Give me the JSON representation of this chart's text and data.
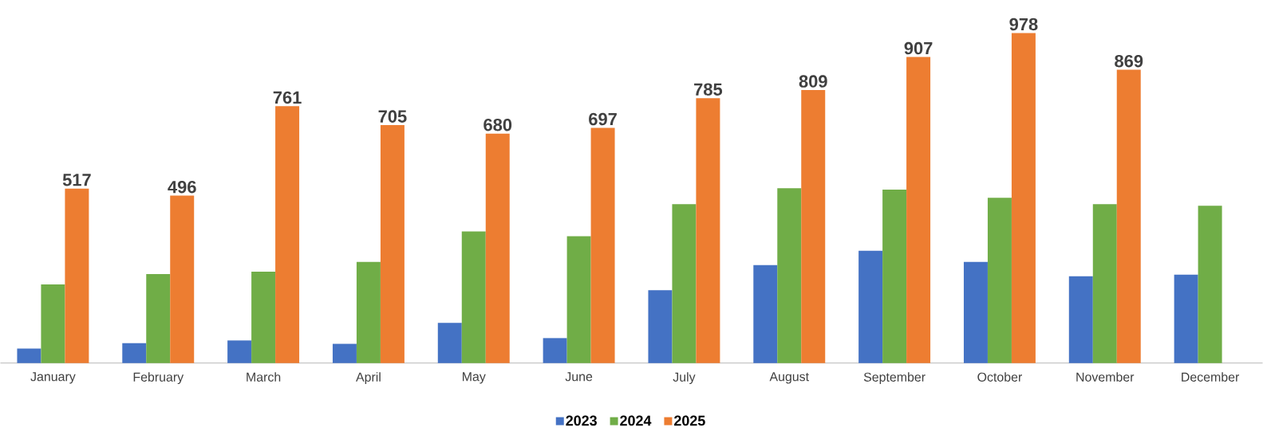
{
  "chart_data": {
    "type": "bar",
    "categories": [
      "January",
      "February",
      "March",
      "April",
      "May",
      "June",
      "July",
      "August",
      "September",
      "October",
      "November",
      "December"
    ],
    "series": [
      {
        "name": "2023",
        "color": "#4472c4",
        "values": [
          43,
          59,
          67,
          57,
          119,
          74,
          216,
          290,
          333,
          300,
          257,
          262
        ]
      },
      {
        "name": "2024",
        "color": "#70ad47",
        "values": [
          233,
          264,
          271,
          300,
          390,
          376,
          471,
          518,
          514,
          490,
          471,
          466
        ]
      },
      {
        "name": "2025",
        "color": "#ed7d31",
        "values": [
          517,
          496,
          761,
          705,
          680,
          697,
          785,
          809,
          907,
          978,
          869,
          null
        ],
        "value_labels": [
          "517",
          "496",
          "761",
          "705",
          "680",
          "697",
          "785",
          "809",
          "907",
          "978",
          "869",
          null
        ]
      }
    ],
    "legend": "bottom"
  }
}
